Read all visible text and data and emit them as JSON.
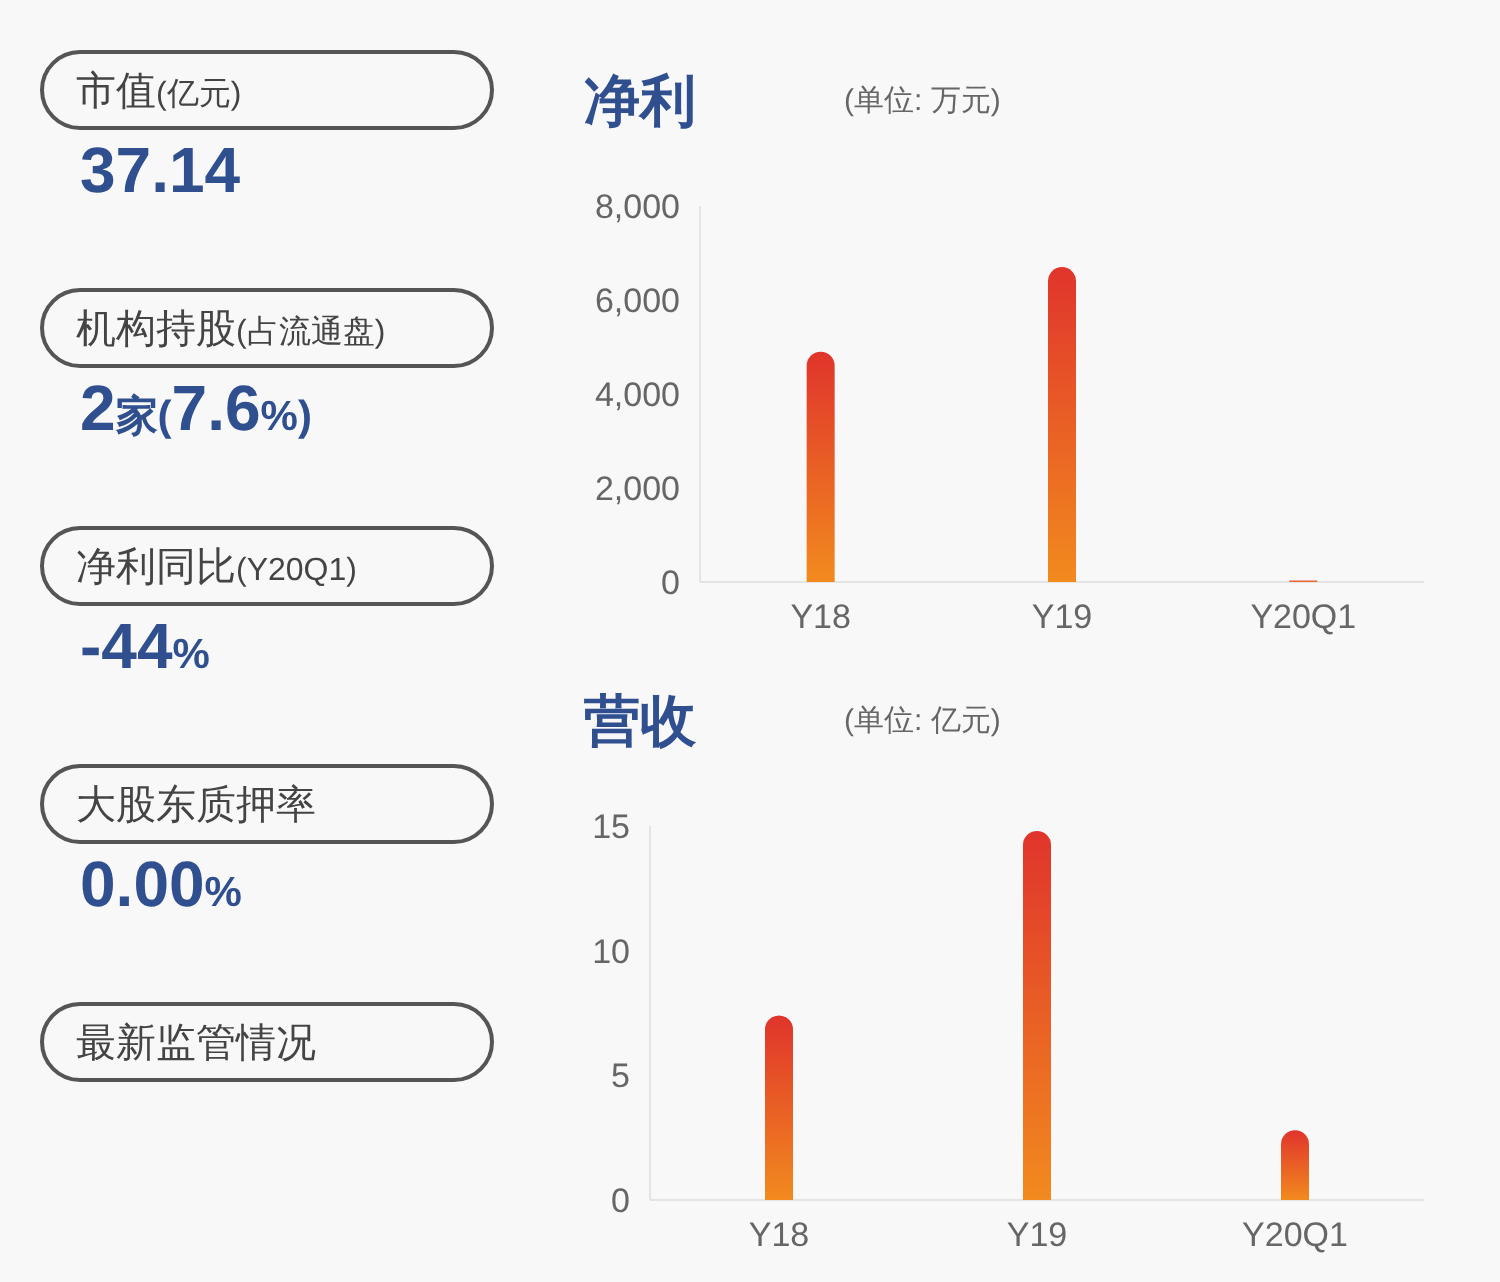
{
  "chart_data": [
    {
      "type": "other",
      "annotations": [
        "市值(亿元)",
        "37.14",
        "机构持股(占流通盘)",
        "2家(7.6%)",
        "净利同比(Y20Q1)",
        "-44%",
        "大股东质押率",
        "0.00%",
        "最新监管情况"
      ]
    },
    {
      "type": "bar",
      "title": "净利",
      "subtitle": "(单位: 万元)",
      "categories": [
        "Y18",
        "Y19",
        "Y20Q1"
      ],
      "values": [
        4900,
        6700,
        30
      ],
      "color": "#e0342c",
      "ylim": [
        0,
        8000
      ],
      "yticks": [
        {
          "value": 0,
          "label": "0"
        },
        {
          "value": 2000,
          "label": "2,000"
        },
        {
          "value": 4000,
          "label": "4,000"
        },
        {
          "value": 6000,
          "label": "6,000"
        },
        {
          "value": 8000,
          "label": "8,000"
        }
      ]
    },
    {
      "type": "bar",
      "title": "营收",
      "subtitle": "(单位: 亿元)",
      "categories": [
        "Y18",
        "Y19",
        "Y20Q1"
      ],
      "values": [
        7.4,
        14.8,
        2.8
      ],
      "color": "#e0342c",
      "ylim": [
        0,
        15
      ],
      "yticks": [
        0,
        5,
        10,
        15
      ]
    }
  ]
}
